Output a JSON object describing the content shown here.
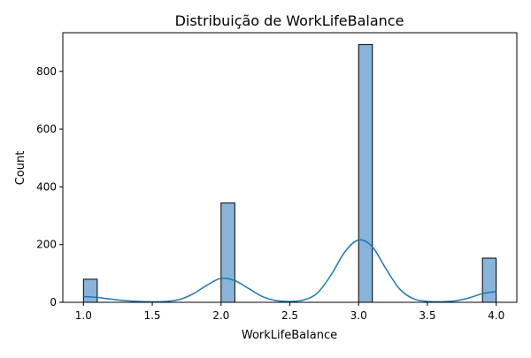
{
  "chart_data": {
    "type": "bar",
    "title": "Distribuição de WorkLifeBalance",
    "xlabel": "WorkLifeBalance",
    "ylabel": "Count",
    "xlim": [
      0.85,
      4.15
    ],
    "ylim": [
      0,
      934
    ],
    "xticks": [
      1.0,
      1.5,
      2.0,
      2.5,
      3.0,
      3.5,
      4.0
    ],
    "xtick_labels": [
      "1.0",
      "1.5",
      "2.0",
      "2.5",
      "3.0",
      "3.5",
      "4.0"
    ],
    "yticks": [
      0,
      200,
      400,
      600,
      800
    ],
    "ytick_labels": [
      "0",
      "200",
      "400",
      "600",
      "800"
    ],
    "bin_width": 0.1,
    "bars": [
      {
        "x_start": 1.0,
        "x_end": 1.1,
        "value": 80
      },
      {
        "x_start": 2.0,
        "x_end": 2.1,
        "value": 344
      },
      {
        "x_start": 3.0,
        "x_end": 3.1,
        "value": 893
      },
      {
        "x_start": 3.9,
        "x_end": 4.0,
        "value": 153
      }
    ],
    "kde": {
      "x": [
        1.0,
        1.1,
        1.2,
        1.3,
        1.4,
        1.5,
        1.6,
        1.7,
        1.8,
        1.9,
        2.0,
        2.1,
        2.2,
        2.3,
        2.4,
        2.5,
        2.6,
        2.7,
        2.8,
        2.9,
        3.0,
        3.1,
        3.2,
        3.3,
        3.4,
        3.5,
        3.6,
        3.7,
        3.8,
        3.9,
        4.0
      ],
      "y": [
        20,
        17,
        11,
        6,
        3,
        2,
        3,
        10,
        30,
        60,
        83,
        75,
        48,
        20,
        6,
        3,
        8,
        32,
        95,
        175,
        216,
        192,
        115,
        45,
        12,
        3,
        2,
        5,
        15,
        30,
        37
      ]
    },
    "grid": false,
    "colors": {
      "bar_fill": "#89b4d9",
      "bar_edge": "#000000",
      "kde_line": "#1f77b4"
    }
  }
}
